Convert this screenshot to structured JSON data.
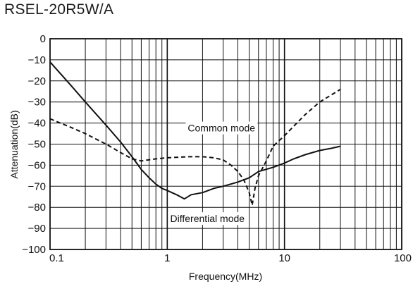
{
  "chart_data": {
    "type": "line",
    "title": "RSEL-20R5W/A",
    "xlabel": "Frequency(MHz)",
    "ylabel": "Attenuation(dB)",
    "xscale": "log",
    "xlim": [
      0.1,
      100
    ],
    "ylim": [
      -100,
      0
    ],
    "x_ticks": [
      "0.1",
      "1",
      "10",
      "100"
    ],
    "y_ticks": [
      "0",
      "−10",
      "−20",
      "−30",
      "−40",
      "−50",
      "−60",
      "−70",
      "−80",
      "−90",
      "−100"
    ],
    "grid": true,
    "series": [
      {
        "name": "Common mode",
        "style": "dashed",
        "color": "#111111",
        "x": [
          0.1,
          0.15,
          0.2,
          0.3,
          0.4,
          0.5,
          0.6,
          0.8,
          1,
          1.5,
          2,
          2.5,
          3,
          3.5,
          4,
          4.5,
          5,
          5.3,
          5.6,
          6,
          7,
          8,
          10,
          15,
          20,
          30
        ],
        "y": [
          -38,
          -42,
          -45,
          -50,
          -54,
          -57,
          -58,
          -57,
          -56.5,
          -56,
          -56,
          -56.5,
          -57.5,
          -60,
          -63,
          -67,
          -73,
          -79,
          -71,
          -65,
          -58,
          -51,
          -46,
          -36,
          -30,
          -24
        ]
      },
      {
        "name": "Differential mode",
        "style": "solid",
        "color": "#111111",
        "x": [
          0.1,
          0.15,
          0.2,
          0.3,
          0.4,
          0.5,
          0.6,
          0.7,
          0.8,
          0.9,
          1.0,
          1.2,
          1.4,
          1.6,
          2.0,
          2.5,
          3.0,
          4.0,
          5.0,
          6.0,
          8.0,
          10,
          12,
          15,
          20,
          25,
          30
        ],
        "y": [
          -11,
          -22,
          -30,
          -41,
          -49,
          -56,
          -62,
          -66,
          -69,
          -71,
          -72,
          -74,
          -76,
          -74,
          -73,
          -71,
          -70,
          -68,
          -66,
          -63,
          -61,
          -59,
          -57,
          -55,
          -53,
          -52,
          -51
        ]
      }
    ],
    "annotations": [
      {
        "text": "Common mode",
        "x": 2.9,
        "y": -44
      },
      {
        "text": "Differential mode",
        "x": 2.2,
        "y": -87
      }
    ]
  }
}
